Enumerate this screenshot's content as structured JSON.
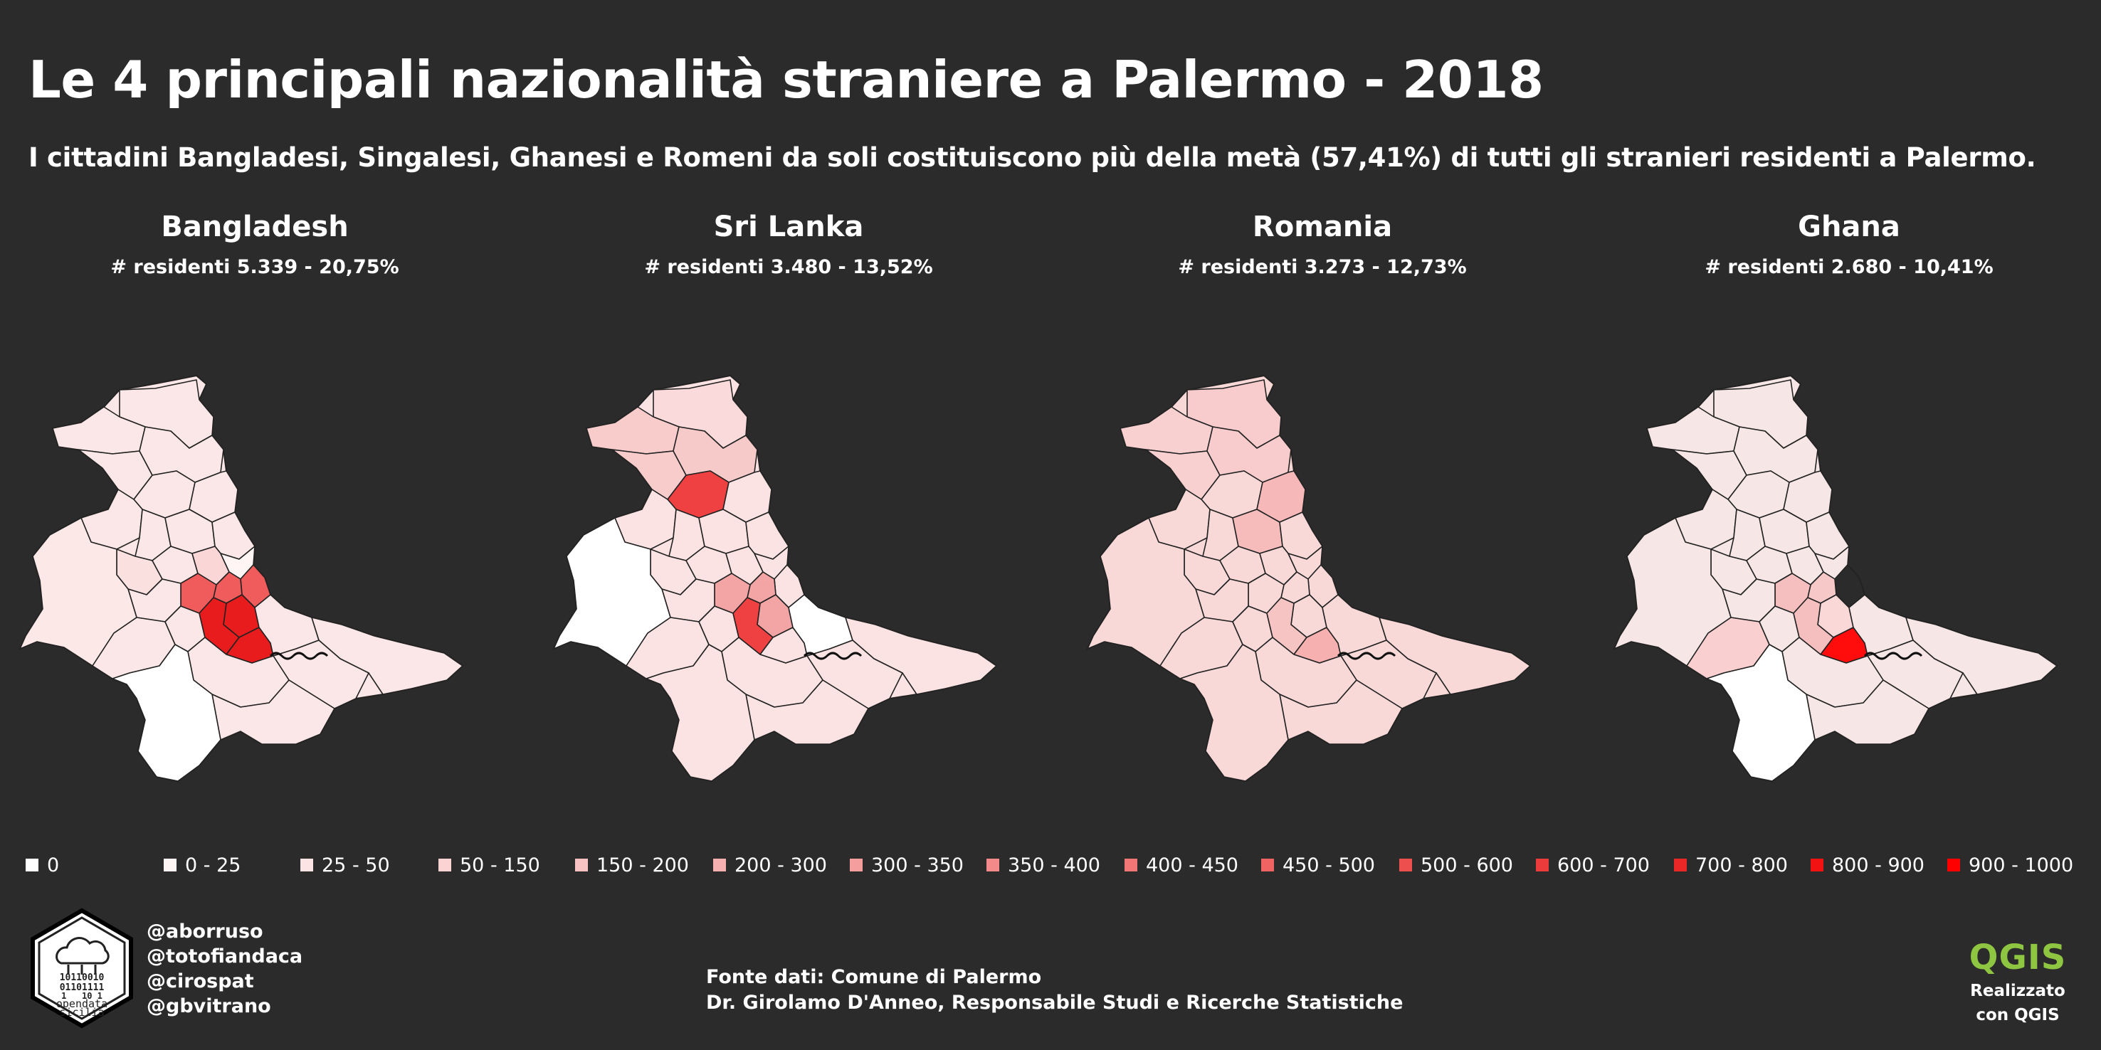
{
  "header": {
    "title": "Le 4 principali nazionalità straniere a Palermo - 2018",
    "subtitle": "I cittadini Bangladesi, Singalesi, Ghanesi e Romeni da soli costituiscono più della  metà (57,41%) di tutti gli stranieri residenti a Palermo."
  },
  "panels": [
    {
      "country": "Bangladesh",
      "stat": "# residenti 5.339 - 20,75%",
      "hotspot": "#e81c1c",
      "secondary": "#f05b5b"
    },
    {
      "country": "Sri Lanka",
      "stat": "# residenti 3.480 - 13,52%",
      "hotspot": "#ef4141",
      "secondary": "#f3a5a5"
    },
    {
      "country": "Romania",
      "stat": "# residenti 3.273 - 12,73%",
      "hotspot": "#f6bcbc",
      "secondary": "#f7c7c7"
    },
    {
      "country": "Ghana",
      "stat": "# residenti 2.680 - 10,41%",
      "hotspot": "#ff0d0d",
      "secondary": "#f5bfbf"
    }
  ],
  "legend": [
    {
      "label": "0",
      "color": "#ffffff"
    },
    {
      "label": "0 - 25",
      "color": "#fff5f5"
    },
    {
      "label": "25 - 50",
      "color": "#fde4e4"
    },
    {
      "label": "50 - 150",
      "color": "#fbd3d3"
    },
    {
      "label": "150 - 200",
      "color": "#f9c2c2"
    },
    {
      "label": "200 - 300",
      "color": "#f7b0b0"
    },
    {
      "label": "300 - 350",
      "color": "#f59e9e"
    },
    {
      "label": "350 - 400",
      "color": "#f38a8a"
    },
    {
      "label": "400 - 450",
      "color": "#f17777"
    },
    {
      "label": "450 - 500",
      "color": "#ef6363"
    },
    {
      "label": "500 - 600",
      "color": "#ed4f4f"
    },
    {
      "label": "600 - 700",
      "color": "#eb3b3b"
    },
    {
      "label": "700 - 800",
      "color": "#e92727"
    },
    {
      "label": "800 - 900",
      "color": "#f21212"
    },
    {
      "label": "900 - 1000",
      "color": "#ff0000"
    }
  ],
  "credits": {
    "logo_lines": [
      "10110010",
      "01101111",
      "1   10 1",
      "opendata",
      "sicilia"
    ],
    "handles": [
      "@aborruso",
      "@totofiandaca",
      "@cirospat",
      "@gbvitrano"
    ]
  },
  "source": {
    "line1": "Fonte dati: Comune di Palermo",
    "line2": "Dr. Girolamo D'Anneo, Responsabile Studi e Ricerche Statistiche"
  },
  "qgis": {
    "logo": "QGIS",
    "line1": "Realizzato",
    "line2": "con QGIS"
  },
  "colors": {
    "background": "#2b2b2b",
    "text": "#ffffff",
    "border": "#222222",
    "qgis_green": "#8ec641"
  }
}
